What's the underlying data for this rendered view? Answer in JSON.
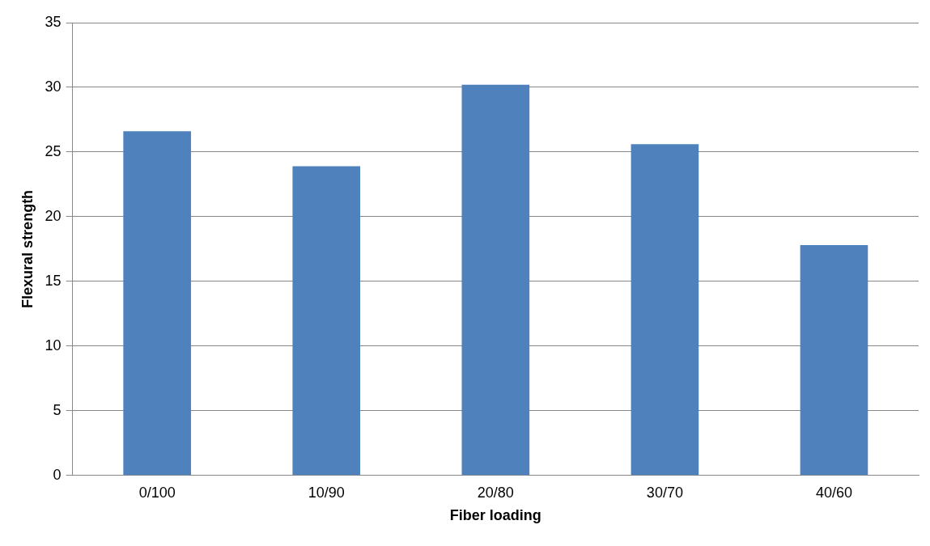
{
  "chart_data": {
    "type": "bar",
    "xlabel": "Fiber loading",
    "ylabel": "Flexural strength",
    "categories": [
      "0/100",
      "10/90",
      "20/80",
      "30/70",
      "40/60"
    ],
    "series": [
      {
        "color": "#4f81bd",
        "values": [
          26.6,
          23.9,
          30.2,
          25.6,
          17.8
        ]
      }
    ],
    "ylim": [
      0,
      35
    ],
    "yticks": [
      0,
      5,
      10,
      15,
      20,
      25,
      30,
      35
    ],
    "grid": "y",
    "legend": false
  }
}
